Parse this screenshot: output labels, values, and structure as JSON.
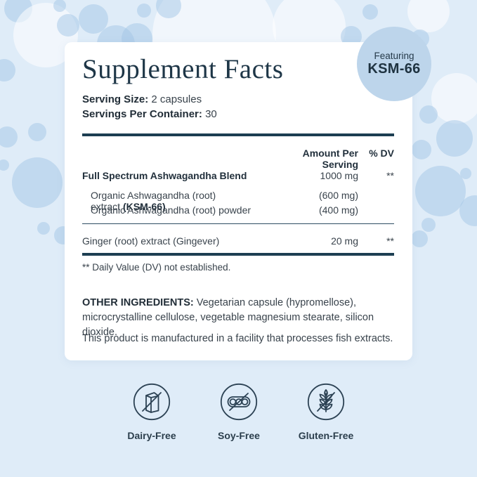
{
  "badge": {
    "line1": "Featuring",
    "line2": "KSM-66"
  },
  "supplement": {
    "title": "Supplement Facts",
    "serving_size": {
      "label": "Serving Size:",
      "value": "2 capsules"
    },
    "servings_per_container": {
      "label": "Servings Per Container:",
      "value": "30"
    },
    "columns": {
      "amount": "Amount Per Serving",
      "dv": "% DV"
    },
    "rows": {
      "blend": {
        "name": "Full Spectrum Ashwagandha Blend",
        "amount": "1000 mg",
        "dv": "**"
      },
      "extract": {
        "name": "Organic Ashwagandha (root) extract",
        "name_bold": "(KSM-66)",
        "amount": "(600 mg)",
        "dv": ""
      },
      "powder": {
        "name": "Organic Ashwagandha (root) powder",
        "amount": "(400 mg)",
        "dv": ""
      },
      "ginger": {
        "name": "Ginger (root) extract (Gingever)",
        "amount": "20 mg",
        "dv": "**"
      }
    },
    "footnote": "** Daily Value (DV) not established.",
    "other_ingredients": {
      "label": "OTHER INGREDIENTS:",
      "text": " Vegetarian capsule (hypromellose), microcrystalline cellulose, vegetable magnesium stearate, silicon dioxide."
    },
    "allergen_note": "This product is manufactured in a facility that processes fish extracts."
  },
  "features": [
    {
      "icon": "dairy-free-icon",
      "label": "Dairy-Free"
    },
    {
      "icon": "soy-free-icon",
      "label": "Soy-Free"
    },
    {
      "icon": "gluten-free-icon",
      "label": "Gluten-Free"
    }
  ],
  "colors": {
    "background": "#dfecf8",
    "card": "#ffffff",
    "navy": "#1d3e52",
    "body_text": "#39434c",
    "badge_circle": "#bdd5eb"
  }
}
